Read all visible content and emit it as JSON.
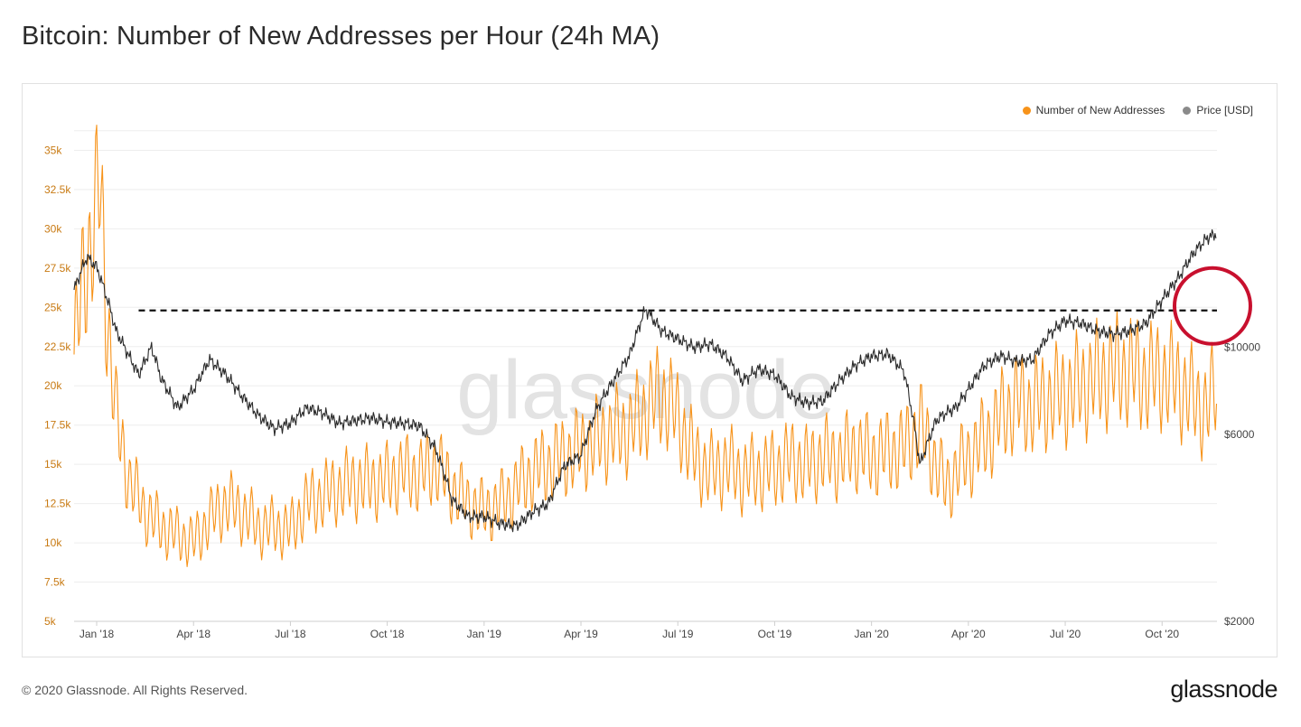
{
  "title": "Bitcoin: Number of New Addresses per Hour (24h MA)",
  "legend": {
    "series1": "Number of New Addresses",
    "series2": "Price [USD]"
  },
  "colors": {
    "addresses": "#f7931a",
    "price": "#2a2a2a",
    "left_axis_text": "#c87a13",
    "grid": "#eeeeee",
    "reference_line": "#111111",
    "highlight_circle": "#c8102e",
    "watermark": "#e3e3e3"
  },
  "watermark": "glassnode",
  "footer": "© 2020 Glassnode. All Rights Reserved.",
  "brand": "glassnode",
  "chart_data": {
    "type": "line",
    "title": "Bitcoin: Number of New Addresses per Hour (24h MA)",
    "x_tick_labels": [
      "Jan '18",
      "Apr '18",
      "Jul '18",
      "Oct '18",
      "Jan '19",
      "Apr '19",
      "Jul '19",
      "Oct '19",
      "Jan '20",
      "Apr '20",
      "Jul '20",
      "Oct '20"
    ],
    "x_tick_months": [
      1,
      4,
      7,
      10,
      13,
      16,
      19,
      22,
      25,
      28,
      31,
      34
    ],
    "x_range_months": [
      0.3,
      35.7
    ],
    "y_left": {
      "label": "Number of New Addresses",
      "ticks": [
        5000,
        7500,
        10000,
        12500,
        15000,
        17500,
        20000,
        22500,
        25000,
        27500,
        30000,
        32500,
        35000
      ],
      "tick_labels": [
        "5k",
        "7.5k",
        "10k",
        "12.5k",
        "15k",
        "17.5k",
        "20k",
        "22.5k",
        "25k",
        "27.5k",
        "30k",
        "32.5k",
        "35k"
      ],
      "range": [
        5000,
        37500
      ]
    },
    "y_right": {
      "label": "Price [USD]",
      "scale": "log",
      "ticks": [
        2000,
        6000,
        10000
      ],
      "tick_labels": [
        "$2000",
        "$6000",
        "$10000"
      ],
      "range": [
        2000,
        40000
      ]
    },
    "series": [
      {
        "name": "Number of New Addresses",
        "axis": "left",
        "months": [
          0.3,
          0.6,
          0.9,
          1.1,
          1.3,
          1.6,
          2.0,
          2.5,
          3.0,
          3.5,
          4.0,
          4.5,
          5.0,
          5.5,
          6.0,
          6.5,
          7.0,
          7.5,
          8.0,
          8.5,
          9.0,
          9.5,
          10.0,
          10.5,
          11.0,
          11.5,
          12.0,
          12.5,
          13.0,
          13.5,
          14.0,
          14.5,
          15.0,
          15.5,
          16.0,
          16.5,
          17.0,
          17.5,
          18.0,
          18.5,
          19.0,
          19.5,
          20.0,
          20.5,
          21.0,
          21.5,
          22.0,
          22.5,
          23.0,
          23.5,
          24.0,
          24.5,
          25.0,
          25.5,
          26.0,
          26.5,
          27.0,
          27.3,
          27.6,
          28.0,
          28.5,
          29.0,
          29.5,
          30.0,
          30.5,
          31.0,
          31.5,
          32.0,
          32.5,
          33.0,
          33.5,
          34.0,
          34.5,
          35.0,
          35.4,
          35.7
        ],
        "values": [
          22000,
          27000,
          30000,
          33000,
          25000,
          18000,
          14000,
          12000,
          11000,
          10500,
          10000,
          11500,
          12500,
          12000,
          11000,
          11000,
          10800,
          12500,
          13000,
          13500,
          13800,
          13800,
          14000,
          14500,
          14300,
          15000,
          13500,
          12500,
          12000,
          12500,
          13500,
          14500,
          15000,
          15500,
          16000,
          16500,
          17000,
          17200,
          18500,
          19500,
          18000,
          15500,
          14500,
          15000,
          14300,
          14500,
          14700,
          15300,
          14900,
          15500,
          15300,
          16000,
          15500,
          15800,
          16000,
          17500,
          15000,
          13500,
          14500,
          15500,
          16500,
          18000,
          19000,
          18700,
          19200,
          19500,
          20000,
          20500,
          21000,
          21000,
          20500,
          20700,
          20200,
          19000,
          18500,
          20000
        ]
      },
      {
        "name": "Price [USD]",
        "axis": "right",
        "months": [
          0.3,
          0.7,
          1.0,
          1.3,
          1.6,
          2.0,
          2.3,
          2.7,
          3.0,
          3.5,
          4.0,
          4.5,
          5.0,
          5.5,
          6.0,
          6.5,
          7.0,
          7.5,
          8.0,
          8.5,
          9.0,
          9.5,
          10.0,
          10.5,
          11.0,
          11.5,
          12.0,
          12.5,
          13.0,
          13.5,
          14.0,
          14.5,
          15.0,
          15.5,
          16.0,
          16.5,
          17.0,
          17.5,
          18.0,
          18.5,
          19.0,
          19.5,
          20.0,
          20.5,
          21.0,
          21.5,
          22.0,
          22.5,
          23.0,
          23.5,
          24.0,
          24.5,
          25.0,
          25.5,
          26.0,
          26.5,
          27.0,
          27.3,
          27.6,
          28.0,
          28.5,
          29.0,
          29.5,
          30.0,
          30.5,
          31.0,
          31.5,
          32.0,
          32.5,
          33.0,
          33.5,
          34.0,
          34.5,
          35.0,
          35.4,
          35.7
        ],
        "values": [
          14000,
          17000,
          16000,
          13500,
          11000,
          9500,
          8500,
          10000,
          8300,
          7000,
          7800,
          9300,
          8500,
          7500,
          6700,
          6200,
          6400,
          7000,
          6800,
          6400,
          6500,
          6600,
          6450,
          6400,
          6300,
          5500,
          4100,
          3700,
          3700,
          3550,
          3500,
          3800,
          4000,
          5000,
          5300,
          7000,
          8200,
          9500,
          12500,
          11000,
          10500,
          10000,
          10200,
          9500,
          8200,
          8800,
          8500,
          7500,
          7200,
          7300,
          8200,
          9000,
          9500,
          9600,
          8700,
          5000,
          6500,
          6800,
          7000,
          7800,
          9000,
          9500,
          9200,
          9300,
          10800,
          11700,
          11500,
          11000,
          10800,
          11000,
          11500,
          13200,
          15000,
          17500,
          19000,
          19500
        ]
      }
    ],
    "annotations": [
      {
        "type": "horizontal_dashed_line",
        "axis": "left",
        "value": 24800,
        "from_month": 2.3,
        "to_month": 35.7
      },
      {
        "type": "highlight_circle",
        "at_month": 35.0
      }
    ],
    "grid": true,
    "legend_position": "top-right"
  }
}
